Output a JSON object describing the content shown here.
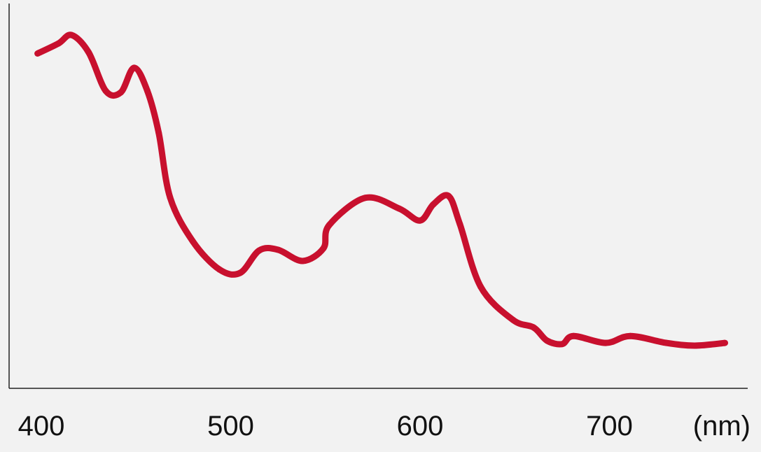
{
  "chart_data": {
    "type": "line",
    "title": "",
    "xlabel": "(nm)",
    "ylabel": "",
    "xlim": [
      383,
      773
    ],
    "ylim": [
      0,
      1
    ],
    "x_ticks": [
      "400",
      "500",
      "600",
      "700"
    ],
    "x_tick_values": [
      400,
      500,
      600,
      700
    ],
    "y_ticks": [],
    "grid": false,
    "legend": "none",
    "series_color": "#c8102e",
    "background": "#f2f2f2",
    "series": [
      {
        "x": [
          398,
          409,
          416,
          425,
          434,
          442,
          449,
          456,
          462,
          468,
          480,
          494,
          505,
          515,
          525,
          538,
          549,
          552,
          571,
          589,
          600,
          607,
          615,
          621,
          632,
          649,
          660,
          667,
          675,
          681,
          698,
          711,
          730,
          745,
          761
        ],
        "y": [
          0.87,
          0.896,
          0.918,
          0.873,
          0.773,
          0.769,
          0.833,
          0.773,
          0.664,
          0.496,
          0.382,
          0.309,
          0.3,
          0.358,
          0.36,
          0.331,
          0.364,
          0.424,
          0.495,
          0.467,
          0.436,
          0.478,
          0.5,
          0.427,
          0.264,
          0.178,
          0.158,
          0.124,
          0.115,
          0.136,
          0.118,
          0.136,
          0.118,
          0.111,
          0.118
        ]
      }
    ]
  }
}
